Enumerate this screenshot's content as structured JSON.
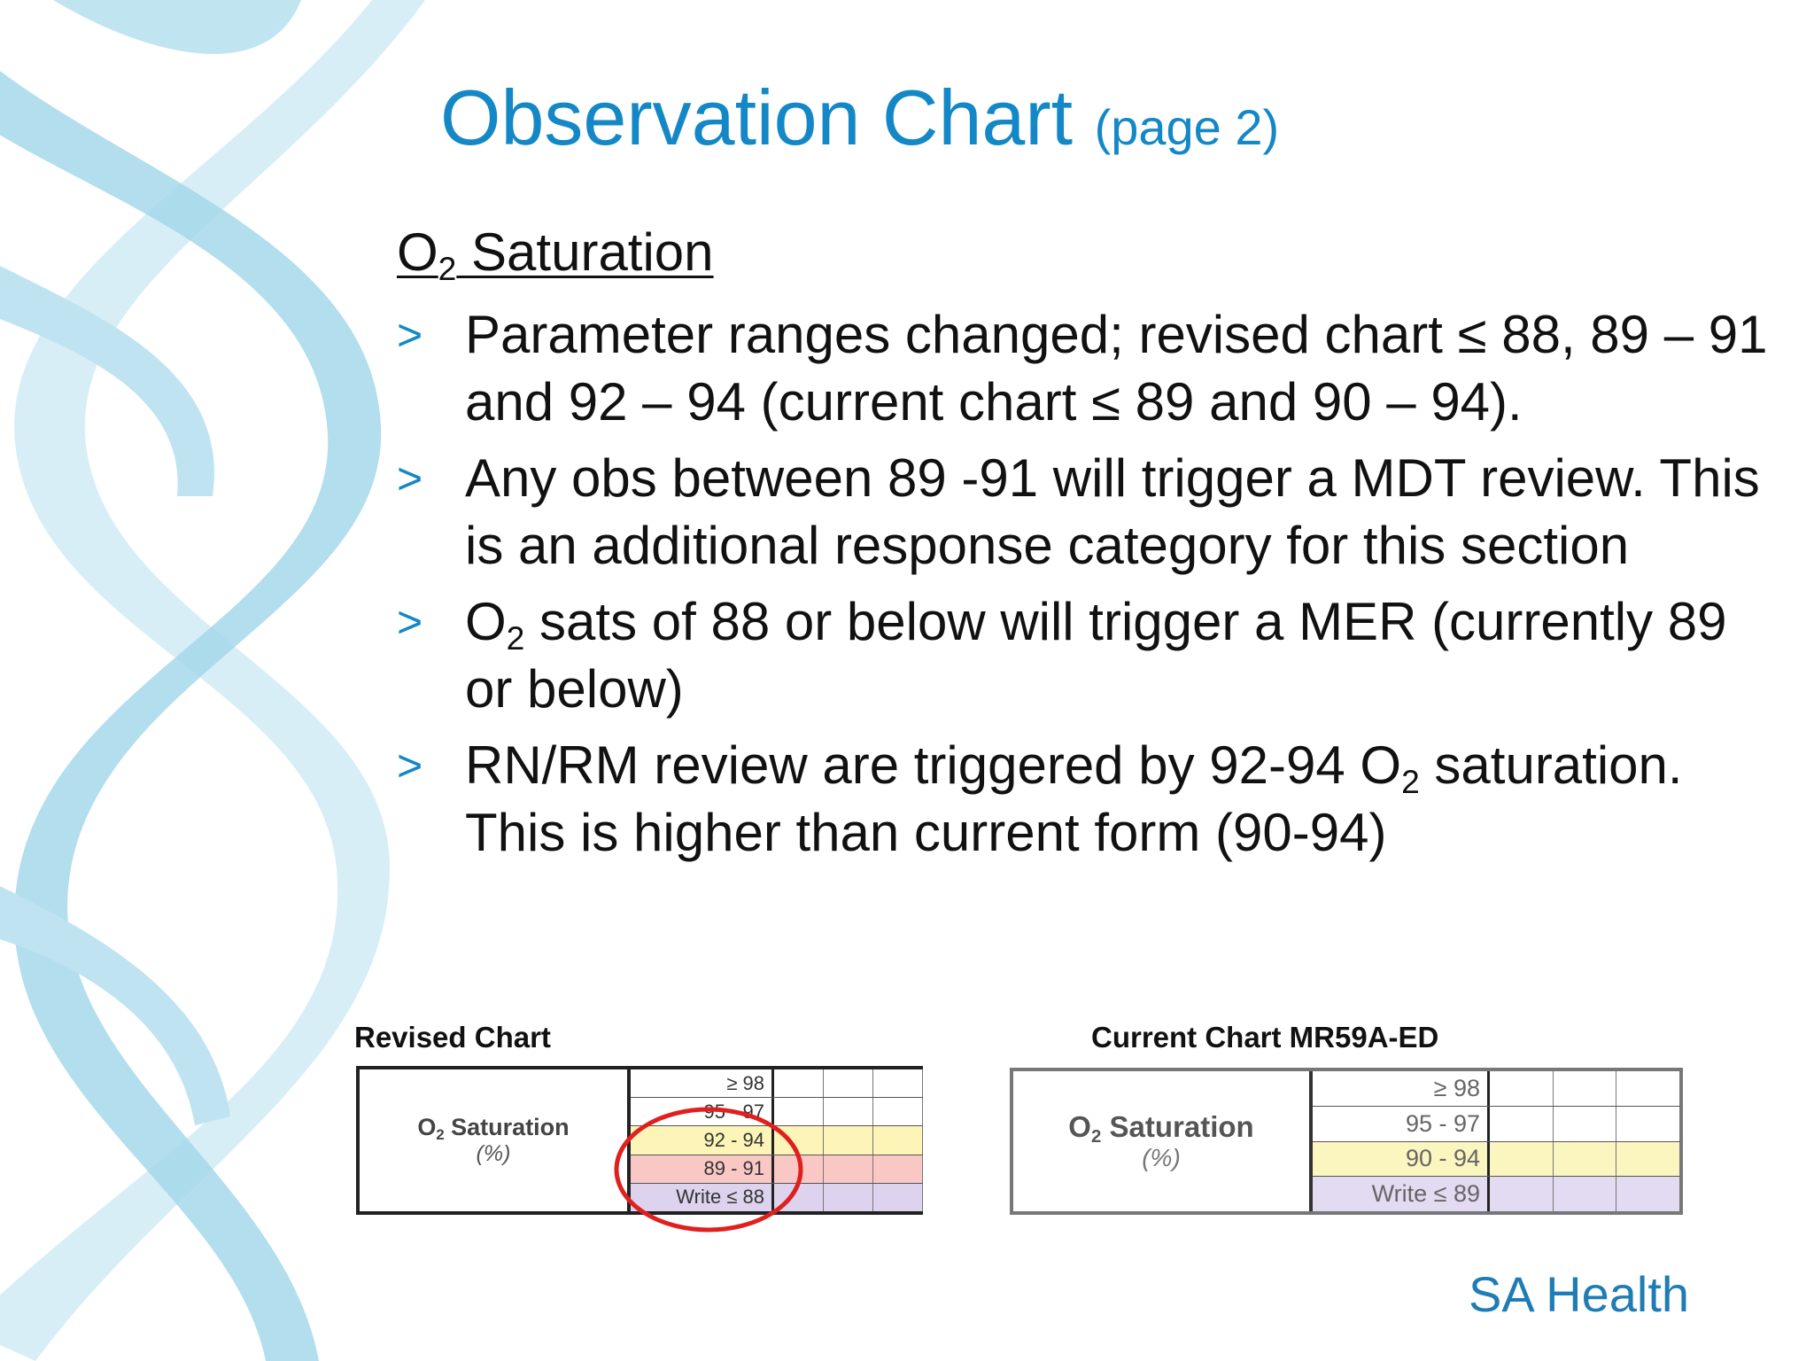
{
  "slide": {
    "title_main": "Observation Chart",
    "title_sub": "(page 2)",
    "subheading": {
      "prefix": "O",
      "subscript": "2",
      "rest": " Saturation"
    },
    "bullet_marker": ">",
    "bullets": [
      {
        "text": "Parameter ranges changed; revised chart ≤ 88, 89 – 91 and 92 – 94 (current chart ≤ 89 and 90 – 94)."
      },
      {
        "text": "Any obs between 89 -91 will trigger a MDT review. This is an additional response category for this section"
      },
      {
        "pre": "O",
        "sub": "2",
        "post": " sats of 88 or below will trigger a MER (currently 89 or below)"
      },
      {
        "pre": "RN/RM review are triggered by 92-94 O",
        "sub": "2",
        "post": " saturation. This is higher than current form (90-94)"
      }
    ],
    "footer": "SA Health"
  },
  "revised_chart": {
    "label": "Revised Chart",
    "name_prefix": "O",
    "name_sub": "2",
    "name_rest": " Saturation",
    "unit": "(%)",
    "rows": [
      {
        "label": "≥ 98",
        "color": "#ffffff"
      },
      {
        "label": "95 - 97",
        "color": "#ffffff"
      },
      {
        "label": "92 - 94",
        "color": "#fdf4b8"
      },
      {
        "label": "89 - 91",
        "color": "#f9c8c4"
      },
      {
        "label": "Write ≤ 88",
        "color": "#ddd3ee"
      }
    ],
    "highlight_color": "#e0201e"
  },
  "current_chart": {
    "label": "Current Chart MR59A-ED",
    "name_prefix": "O",
    "name_sub": "2",
    "name_rest": " Saturation",
    "unit": "(%)",
    "rows": [
      {
        "label": "≥ 98",
        "color": "#ffffff"
      },
      {
        "label": "95 - 97",
        "color": "#ffffff"
      },
      {
        "label": "90 - 94",
        "color": "#fbf5bf"
      },
      {
        "label": "Write ≤ 89",
        "color": "#e2dbf1"
      }
    ]
  },
  "colors": {
    "accent_blue": "#1488c6",
    "decor_light": "#d7eef6",
    "decor_mid": "#a5d8ea"
  }
}
